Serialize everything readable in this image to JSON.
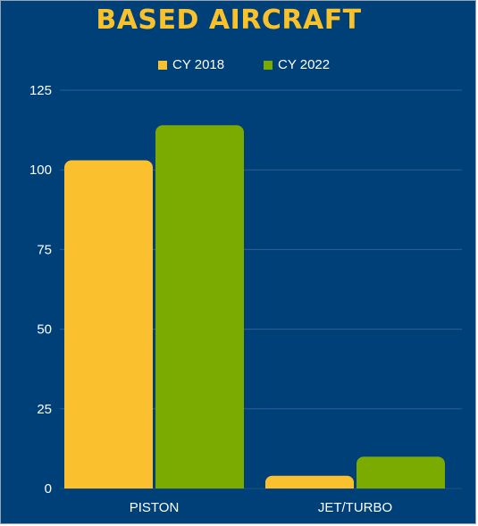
{
  "chart_data": {
    "type": "bar",
    "title": "BASED AIRCRAFT",
    "categories": [
      "PISTON",
      "JET/TURBO"
    ],
    "series": [
      {
        "name": "CY 2018",
        "values": [
          103,
          4
        ],
        "color": "#fbc02d"
      },
      {
        "name": "CY 2022",
        "values": [
          114,
          10
        ],
        "color": "#7cab00"
      }
    ],
    "ylim": [
      0,
      125
    ],
    "yticks": [
      0,
      25,
      50,
      75,
      100,
      125
    ],
    "grid": true,
    "legend_position": "top-center",
    "colors": {
      "background": "#004078",
      "title": "#f9c12a",
      "text": "#ffffff",
      "grid": "#2f5f92"
    }
  }
}
